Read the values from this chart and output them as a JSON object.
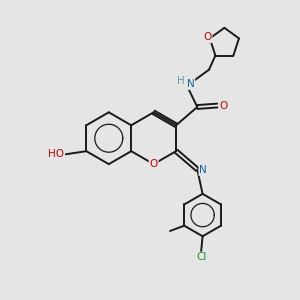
{
  "bg_color": "#e5e5e5",
  "bond_color": "#1a1a1a",
  "bond_width": 1.4,
  "atom_colors": {
    "O": "#cc0000",
    "N": "#1a5fa8",
    "Cl": "#2a8a2a",
    "H": "#5f9ea0",
    "C": "#1a1a1a"
  },
  "font_size": 7.5
}
